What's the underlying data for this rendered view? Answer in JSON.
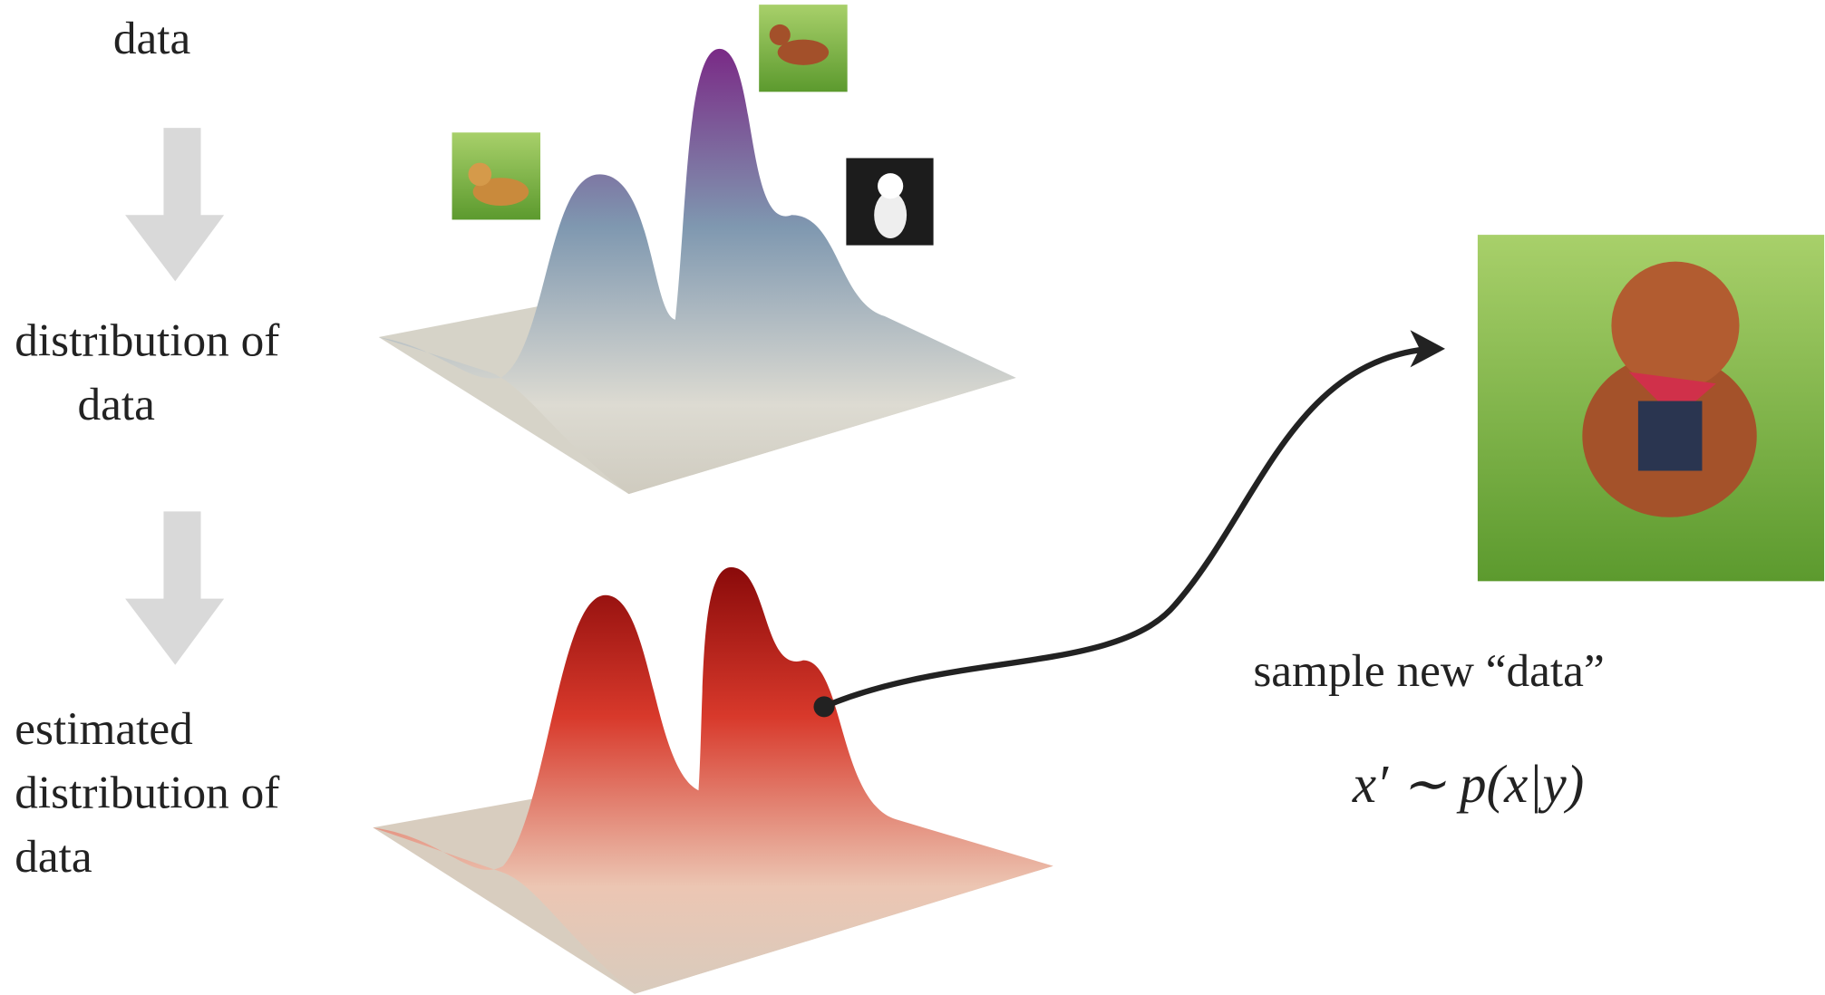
{
  "steps": {
    "data": "data",
    "distribution": [
      "distribution of",
      "data"
    ],
    "estimated": [
      "estimated",
      "distribution of",
      "data"
    ]
  },
  "sample": {
    "caption": "sample new “data”",
    "formula": "x′ ∼ p(x|y)"
  }
}
